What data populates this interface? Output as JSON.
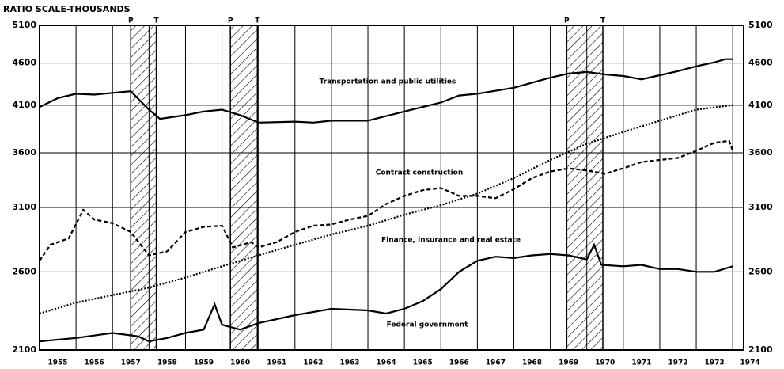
{
  "chart_data": {
    "type": "line",
    "title": "RATIO SCALE-THOUSANDS",
    "log_scale": true,
    "grid": true,
    "ylim": [
      2100,
      5100
    ],
    "yticks": [
      2100,
      2600,
      3100,
      3600,
      4100,
      4600,
      5100
    ],
    "xlim": [
      1955,
      1974.3
    ],
    "xticks": [
      1955,
      1956,
      1957,
      1958,
      1959,
      1960,
      1961,
      1962,
      1963,
      1964,
      1965,
      1966,
      1967,
      1968,
      1969,
      1970,
      1971,
      1972,
      1973,
      1974
    ],
    "recessions": [
      {
        "peak": 1957.5,
        "trough": 1958.2,
        "peak_label": "P",
        "trough_label": "T"
      },
      {
        "peak": 1960.23,
        "trough": 1960.97,
        "peak_label": "P",
        "trough_label": "T"
      },
      {
        "peak": 1969.45,
        "trough": 1970.44,
        "peak_label": "P",
        "trough_label": "T"
      }
    ],
    "series": [
      {
        "name": "Transportation and public utilities",
        "color": "#000000",
        "style": "solid",
        "x": [
          1955,
          1955.5,
          1956,
          1956.5,
          1957,
          1957.5,
          1958,
          1958.3,
          1959,
          1959.5,
          1960,
          1960.5,
          1961,
          1962,
          1962.5,
          1963,
          1964,
          1964.5,
          1965,
          1966,
          1966.5,
          1967,
          1968,
          1969,
          1969.5,
          1970,
          1970.5,
          1971,
          1971.5,
          1972,
          1972.5,
          1973,
          1973.5,
          1973.8,
          1974
        ],
        "values": [
          4080,
          4180,
          4230,
          4220,
          4240,
          4260,
          4050,
          3950,
          3990,
          4030,
          4050,
          3990,
          3910,
          3920,
          3910,
          3930,
          3930,
          3980,
          4030,
          4130,
          4210,
          4230,
          4300,
          4420,
          4470,
          4490,
          4460,
          4440,
          4400,
          4450,
          4500,
          4560,
          4610,
          4650,
          4650
        ]
      },
      {
        "name": "Contract construction",
        "color": "#000000",
        "style": "dashed",
        "x": [
          1955,
          1955.3,
          1955.8,
          1956.2,
          1956.5,
          1957,
          1957.5,
          1958,
          1958.5,
          1959,
          1959.5,
          1960,
          1960.3,
          1960.8,
          1961,
          1961.5,
          1962,
          1962.5,
          1963,
          1963.5,
          1964,
          1964.5,
          1965,
          1965.5,
          1966,
          1966.5,
          1967,
          1967.5,
          1968,
          1968.5,
          1969,
          1969.5,
          1970,
          1970.5,
          1971,
          1971.5,
          1972,
          1972.5,
          1973,
          1973.5,
          1973.9,
          1974
        ],
        "values": [
          2680,
          2800,
          2850,
          3080,
          3000,
          2970,
          2900,
          2720,
          2750,
          2900,
          2940,
          2950,
          2780,
          2820,
          2780,
          2820,
          2900,
          2950,
          2960,
          3000,
          3030,
          3130,
          3200,
          3250,
          3270,
          3200,
          3200,
          3180,
          3260,
          3360,
          3420,
          3450,
          3430,
          3400,
          3450,
          3510,
          3530,
          3550,
          3620,
          3700,
          3720,
          3620
        ]
      },
      {
        "name": "Finance, insurance and real estate",
        "color": "#000000",
        "style": "dotted",
        "x": [
          1955,
          1956,
          1957,
          1958,
          1959,
          1960,
          1961,
          1962,
          1963,
          1964,
          1965,
          1966,
          1967,
          1968,
          1969,
          1970,
          1971,
          1972,
          1973,
          1974
        ],
        "values": [
          2320,
          2390,
          2440,
          2490,
          2560,
          2640,
          2720,
          2800,
          2880,
          2950,
          3040,
          3120,
          3220,
          3360,
          3530,
          3690,
          3810,
          3930,
          4050,
          4100
        ]
      },
      {
        "name": "Federal government",
        "color": "#000000",
        "style": "solid",
        "x": [
          1955,
          1956,
          1957,
          1957.7,
          1958,
          1958.5,
          1959,
          1959.5,
          1959.8,
          1960,
          1960.5,
          1961,
          1962,
          1963,
          1964,
          1964.5,
          1965,
          1965.5,
          1966,
          1966.5,
          1967,
          1967.5,
          1968,
          1968.5,
          1969,
          1969.5,
          1970,
          1970.2,
          1970.4,
          1971,
          1971.5,
          1972,
          1972.5,
          1973,
          1973.5,
          1974
        ],
        "values": [
          2150,
          2170,
          2200,
          2180,
          2150,
          2170,
          2200,
          2220,
          2380,
          2250,
          2220,
          2260,
          2310,
          2350,
          2340,
          2320,
          2350,
          2400,
          2480,
          2600,
          2680,
          2710,
          2700,
          2720,
          2730,
          2720,
          2690,
          2800,
          2650,
          2640,
          2650,
          2620,
          2620,
          2600,
          2600,
          2640
        ]
      }
    ]
  }
}
